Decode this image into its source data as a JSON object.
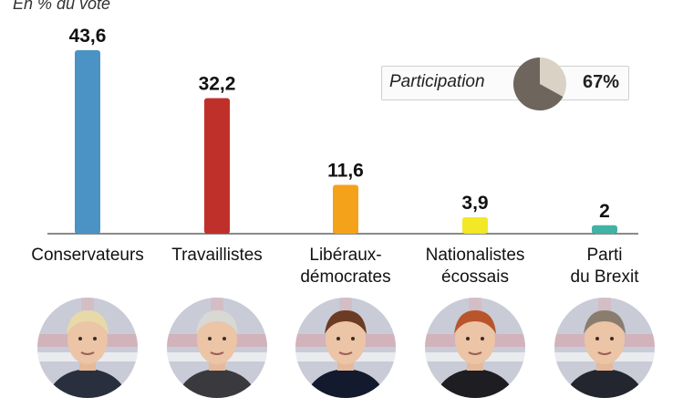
{
  "subtitle": "En % du vote",
  "chart_data": {
    "type": "bar",
    "title": "",
    "subtitle": "En % du vote",
    "categories": [
      "Conservateurs",
      "Travaillistes",
      "Libéraux-démocrates",
      "Nationalistes écossais",
      "Parti du Brexit"
    ],
    "category_labels": [
      [
        "Conservateurs"
      ],
      [
        "Travaillistes"
      ],
      [
        "Libéraux-",
        "démocrates"
      ],
      [
        "Nationalistes",
        "écossais"
      ],
      [
        "Parti",
        "du Brexit"
      ]
    ],
    "values": [
      43.6,
      32.2,
      11.6,
      3.9,
      2
    ],
    "value_labels": [
      "43,6",
      "32,2",
      "11,6",
      "3,9",
      "2"
    ],
    "colors": [
      "#4a93c4",
      "#c0302a",
      "#f5a21b",
      "#f2e825",
      "#3fb3a5"
    ],
    "ylim": [
      0,
      45
    ],
    "xlabel": "",
    "ylabel": ""
  },
  "participation": {
    "label": "Participation",
    "value": 67,
    "value_label": "67%",
    "colors": {
      "filled": "#6e655d",
      "rest": "#d9d2c5"
    }
  },
  "portraits": [
    {
      "name": "conservateurs-leader-photo",
      "hair": "#e8d9a8",
      "suit": "#2a2f3e"
    },
    {
      "name": "travaillistes-leader-photo",
      "hair": "#d8d8d4",
      "suit": "#3a3a3e"
    },
    {
      "name": "liberaux-democrates-leader-photo",
      "hair": "#6b3c23",
      "suit": "#141a2e"
    },
    {
      "name": "nationalistes-ecossais-leader-photo",
      "hair": "#b8552a",
      "suit": "#1d1d22"
    },
    {
      "name": "parti-du-brexit-leader-photo",
      "hair": "#8a7d6e",
      "suit": "#23262f"
    }
  ]
}
